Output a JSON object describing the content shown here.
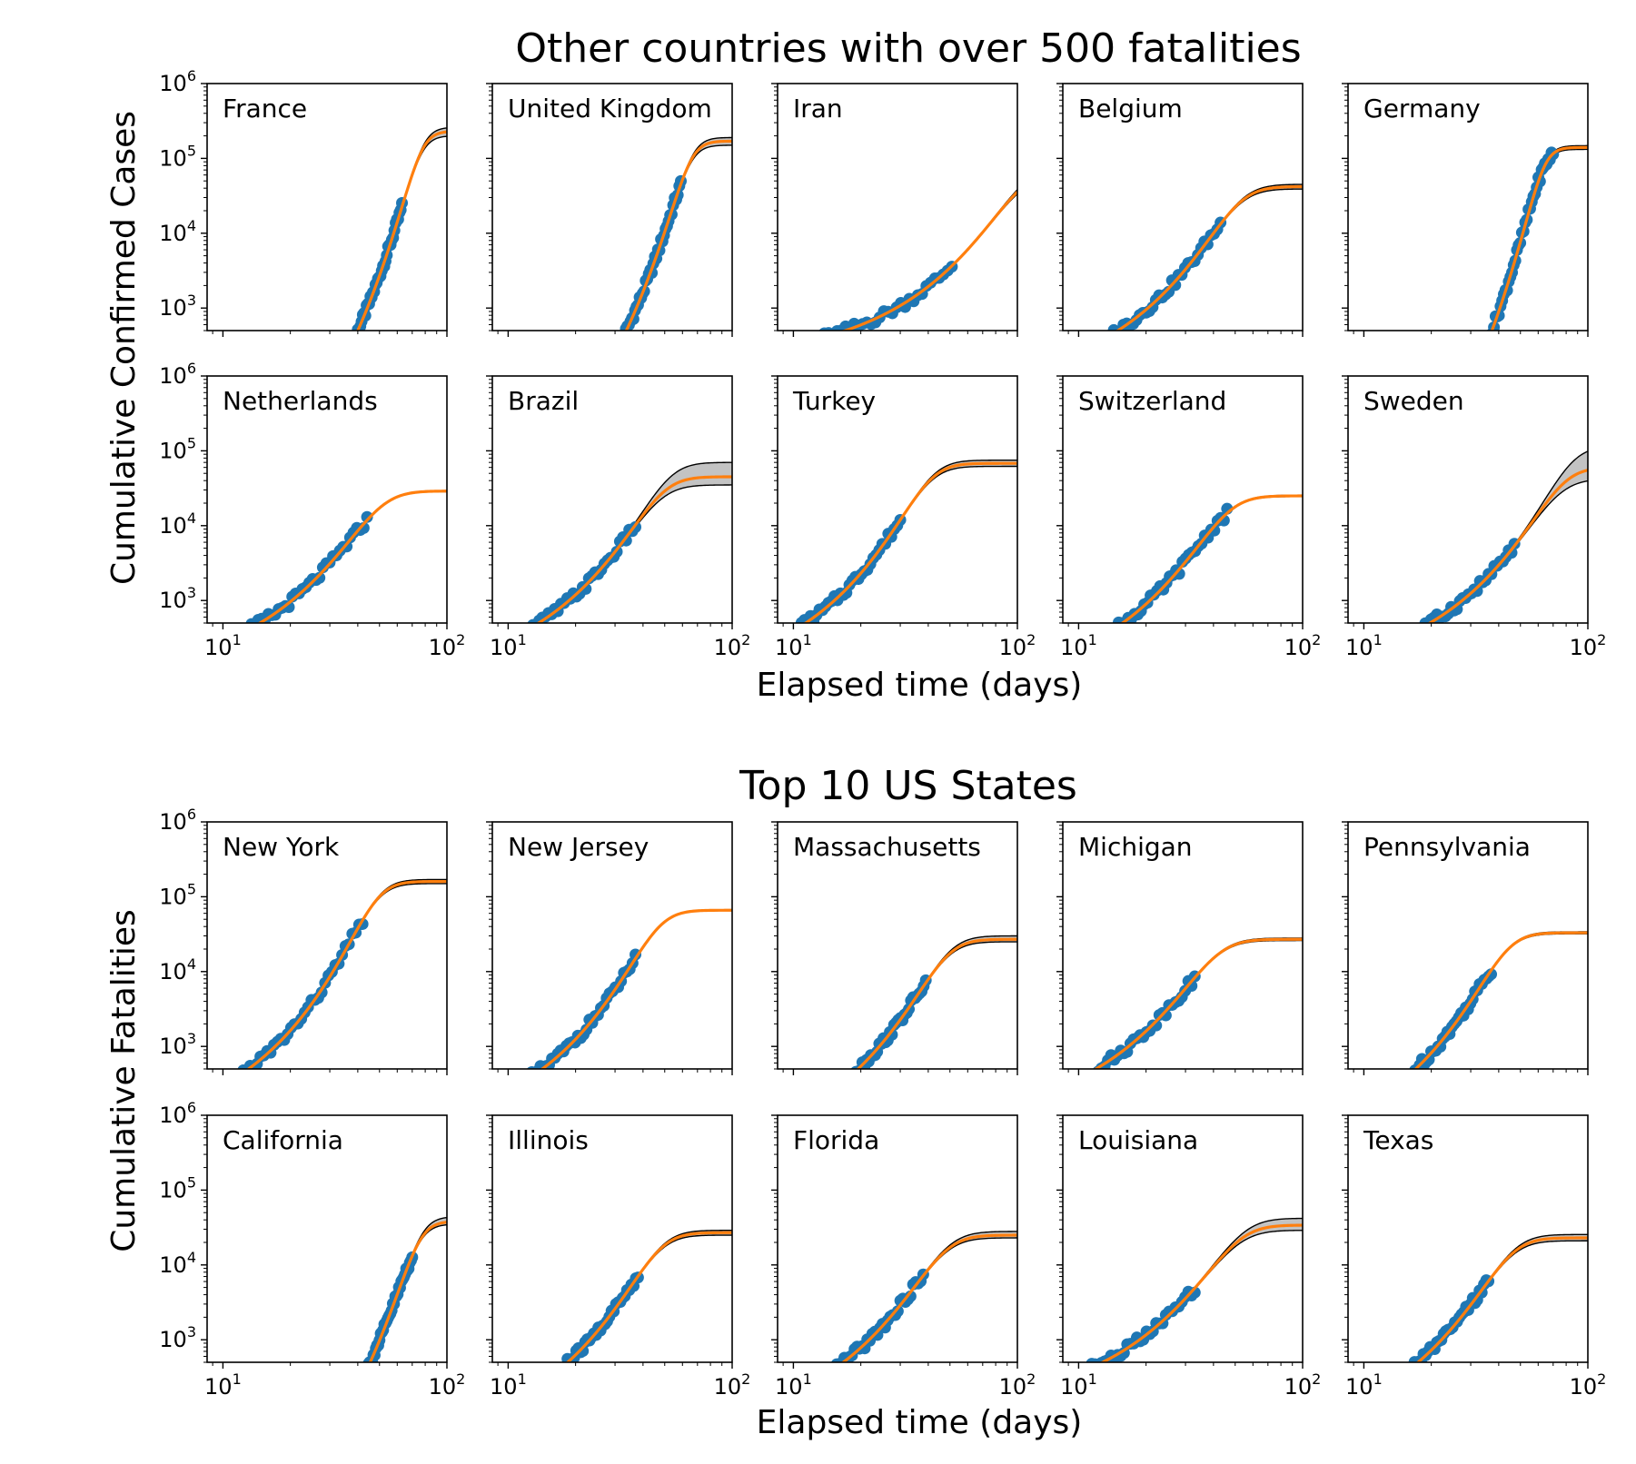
{
  "figure": {
    "sections": [
      {
        "title": "Other countries with over 500 fatalities",
        "ylabel": "Cumulative Confirmed Cases",
        "xlabel": "Elapsed time (days)"
      },
      {
        "title": "Top 10 US States",
        "ylabel": "Cumulative Fatalities",
        "xlabel": "Elapsed time (days)"
      }
    ],
    "colors": {
      "data": "#1f77b4",
      "fit": "#ff7f0e",
      "band": "#b8b8b8",
      "band_edge": "#000000"
    }
  },
  "chart_data": [
    {
      "type": "scatter",
      "panel": "France",
      "section": 0,
      "xscale": "log",
      "yscale": "log",
      "xlim": [
        8.5,
        100
      ],
      "ylim": [
        500,
        1000000
      ],
      "xticks": [
        "10^1",
        "10^2"
      ],
      "yticks": [
        "10^3",
        "10^4",
        "10^5",
        "10^6"
      ],
      "t0": 37,
      "t1": 63,
      "ymax": 230000,
      "k": 0.17,
      "band": [
        200000,
        260000
      ],
      "tail": 0.12
    },
    {
      "type": "scatter",
      "panel": "United Kingdom",
      "section": 0,
      "xscale": "log",
      "yscale": "log",
      "xlim": [
        8.5,
        100
      ],
      "ylim": [
        500,
        1000000
      ],
      "xticks": [
        "10^1",
        "10^2"
      ],
      "yticks": [
        "10^3",
        "10^4",
        "10^5",
        "10^6"
      ],
      "t0": 31,
      "t1": 59,
      "ymax": 170000,
      "k": 0.19,
      "band": [
        150000,
        190000
      ],
      "tail": 0.1
    },
    {
      "type": "scatter",
      "panel": "Iran",
      "section": 0,
      "xscale": "log",
      "yscale": "log",
      "xlim": [
        8.5,
        100
      ],
      "ylim": [
        500,
        1000000
      ],
      "xticks": [
        "10^1",
        "10^2"
      ],
      "yticks": [
        "10^3",
        "10^4",
        "10^5",
        "10^6"
      ],
      "t0": 8.5,
      "t1": 51,
      "ymax": 70000,
      "k": 0.06,
      "band": [
        62000,
        80000
      ],
      "tail": 0.15
    },
    {
      "type": "scatter",
      "panel": "Belgium",
      "section": 0,
      "xscale": "log",
      "yscale": "log",
      "xlim": [
        8.5,
        100
      ],
      "ylim": [
        500,
        1000000
      ],
      "xticks": [
        "10^1",
        "10^2"
      ],
      "yticks": [
        "10^3",
        "10^4",
        "10^5",
        "10^6"
      ],
      "t0": 11,
      "t1": 43,
      "ymax": 42000,
      "k": 0.13,
      "band": [
        39000,
        45000
      ],
      "tail": 0.15
    },
    {
      "type": "scatter",
      "panel": "Germany",
      "section": 0,
      "xscale": "log",
      "yscale": "log",
      "xlim": [
        8.5,
        100
      ],
      "ylim": [
        500,
        1000000
      ],
      "xticks": [
        "10^1",
        "10^2"
      ],
      "yticks": [
        "10^3",
        "10^4",
        "10^5",
        "10^6"
      ],
      "t0": 35,
      "t1": 70,
      "ymax": 140000,
      "k": 0.22,
      "band": [
        132000,
        148000
      ],
      "tail": 0.2
    },
    {
      "type": "scatter",
      "panel": "Netherlands",
      "section": 0,
      "xscale": "log",
      "yscale": "log",
      "xlim": [
        8.5,
        100
      ],
      "ylim": [
        500,
        1000000
      ],
      "xticks": [
        "10^1",
        "10^2"
      ],
      "yticks": [
        "10^3",
        "10^4",
        "10^5",
        "10^6"
      ],
      "t0": 10.5,
      "t1": 44,
      "ymax": 29000,
      "k": 0.125,
      "band": [
        28500,
        29500
      ],
      "tail": 0.2
    },
    {
      "type": "scatter",
      "panel": "Brazil",
      "section": 0,
      "xscale": "log",
      "yscale": "log",
      "xlim": [
        8.5,
        100
      ],
      "ylim": [
        500,
        1000000
      ],
      "xticks": [
        "10^1",
        "10^2"
      ],
      "yticks": [
        "10^3",
        "10^4",
        "10^5",
        "10^6"
      ],
      "t0": 10,
      "t1": 37,
      "ymax": 45000,
      "k": 0.14,
      "band": [
        35000,
        70000
      ],
      "tail": 0.06
    },
    {
      "type": "scatter",
      "panel": "Turkey",
      "section": 0,
      "xscale": "log",
      "yscale": "log",
      "xlim": [
        8.5,
        100
      ],
      "ylim": [
        500,
        1000000
      ],
      "xticks": [
        "10^1",
        "10^2"
      ],
      "yticks": [
        "10^3",
        "10^4",
        "10^5",
        "10^6"
      ],
      "t0": 8.5,
      "t1": 30,
      "ymax": 68000,
      "k": 0.18,
      "band": [
        62000,
        75000
      ],
      "tail": 0.2
    },
    {
      "type": "scatter",
      "panel": "Switzerland",
      "section": 0,
      "xscale": "log",
      "yscale": "log",
      "xlim": [
        8.5,
        100
      ],
      "ylim": [
        500,
        1000000
      ],
      "xticks": [
        "10^1",
        "10^2"
      ],
      "yticks": [
        "10^3",
        "10^4",
        "10^5",
        "10^6"
      ],
      "t0": 12,
      "t1": 46,
      "ymax": 25000,
      "k": 0.14,
      "band": [
        24500,
        25500
      ],
      "tail": 0.2
    },
    {
      "type": "scatter",
      "panel": "Sweden",
      "section": 0,
      "xscale": "log",
      "yscale": "log",
      "xlim": [
        8.5,
        100
      ],
      "ylim": [
        500,
        1000000
      ],
      "xticks": [
        "10^1",
        "10^2"
      ],
      "yticks": [
        "10^3",
        "10^4",
        "10^5",
        "10^6"
      ],
      "t0": 14,
      "t1": 47,
      "ymax": 60000,
      "k": 0.09,
      "band": [
        42000,
        115000
      ],
      "tail": 0.06
    },
    {
      "type": "scatter",
      "panel": "New York",
      "section": 1,
      "xscale": "log",
      "yscale": "log",
      "xlim": [
        8.5,
        100
      ],
      "ylim": [
        500,
        1000000
      ],
      "xticks": [
        "10^1",
        "10^2"
      ],
      "yticks": [
        "10^3",
        "10^4",
        "10^5",
        "10^6"
      ],
      "t0": 10,
      "t1": 42,
      "ymax": 160000,
      "k": 0.17,
      "band": [
        150000,
        170000
      ],
      "tail": 0.15
    },
    {
      "type": "scatter",
      "panel": "New Jersey",
      "section": 1,
      "xscale": "log",
      "yscale": "log",
      "xlim": [
        8.5,
        100
      ],
      "ylim": [
        500,
        1000000
      ],
      "xticks": [
        "10^1",
        "10^2"
      ],
      "yticks": [
        "10^3",
        "10^4",
        "10^5",
        "10^6"
      ],
      "t0": 11,
      "t1": 37,
      "ymax": 66000,
      "k": 0.16,
      "band": [
        65000,
        67000
      ],
      "tail": 0.2
    },
    {
      "type": "scatter",
      "panel": "Massachusetts",
      "section": 1,
      "xscale": "log",
      "yscale": "log",
      "xlim": [
        8.5,
        100
      ],
      "ylim": [
        500,
        1000000
      ],
      "xticks": [
        "10^1",
        "10^2"
      ],
      "yticks": [
        "10^3",
        "10^4",
        "10^5",
        "10^6"
      ],
      "t0": 16,
      "t1": 39,
      "ymax": 27000,
      "k": 0.15,
      "band": [
        25000,
        30000
      ],
      "tail": 0.2
    },
    {
      "type": "scatter",
      "panel": "Michigan",
      "section": 1,
      "xscale": "log",
      "yscale": "log",
      "xlim": [
        8.5,
        100
      ],
      "ylim": [
        500,
        1000000
      ],
      "xticks": [
        "10^1",
        "10^2"
      ],
      "yticks": [
        "10^3",
        "10^4",
        "10^5",
        "10^6"
      ],
      "t0": 8.5,
      "t1": 33,
      "ymax": 27000,
      "k": 0.15,
      "band": [
        26000,
        28000
      ],
      "tail": 0.2
    },
    {
      "type": "scatter",
      "panel": "Pennsylvania",
      "section": 1,
      "xscale": "log",
      "yscale": "log",
      "xlim": [
        8.5,
        100
      ],
      "ylim": [
        500,
        1000000
      ],
      "xticks": [
        "10^1",
        "10^2"
      ],
      "yticks": [
        "10^3",
        "10^4",
        "10^5",
        "10^6"
      ],
      "t0": 14,
      "t1": 37,
      "ymax": 33000,
      "k": 0.17,
      "band": [
        32000,
        34000
      ],
      "tail": 0.2
    },
    {
      "type": "scatter",
      "panel": "California",
      "section": 1,
      "xscale": "log",
      "yscale": "log",
      "xlim": [
        8.5,
        100
      ],
      "ylim": [
        500,
        1000000
      ],
      "xticks": [
        "10^1",
        "10^2"
      ],
      "yticks": [
        "10^3",
        "10^4",
        "10^5",
        "10^6"
      ],
      "t0": 42,
      "t1": 70,
      "ymax": 38000,
      "k": 0.15,
      "band": [
        35000,
        44000
      ],
      "tail": 0.1
    },
    {
      "type": "scatter",
      "panel": "Illinois",
      "section": 1,
      "xscale": "log",
      "yscale": "log",
      "xlim": [
        8.5,
        100
      ],
      "ylim": [
        500,
        1000000
      ],
      "xticks": [
        "10^1",
        "10^2"
      ],
      "yticks": [
        "10^3",
        "10^4",
        "10^5",
        "10^6"
      ],
      "t0": 15,
      "t1": 38,
      "ymax": 27000,
      "k": 0.15,
      "band": [
        25000,
        29000
      ],
      "tail": 0.2
    },
    {
      "type": "scatter",
      "panel": "Florida",
      "section": 1,
      "xscale": "log",
      "yscale": "log",
      "xlim": [
        8.5,
        100
      ],
      "ylim": [
        500,
        1000000
      ],
      "xticks": [
        "10^1",
        "10^2"
      ],
      "yticks": [
        "10^3",
        "10^4",
        "10^5",
        "10^6"
      ],
      "t0": 13,
      "t1": 38,
      "ymax": 25000,
      "k": 0.14,
      "band": [
        23000,
        28000
      ],
      "tail": 0.2
    },
    {
      "type": "scatter",
      "panel": "Louisiana",
      "section": 1,
      "xscale": "log",
      "yscale": "log",
      "xlim": [
        8.5,
        100
      ],
      "ylim": [
        500,
        1000000
      ],
      "xticks": [
        "10^1",
        "10^2"
      ],
      "yticks": [
        "10^3",
        "10^4",
        "10^5",
        "10^6"
      ],
      "t0": 8.5,
      "t1": 33,
      "ymax": 34000,
      "k": 0.12,
      "band": [
        29000,
        42000
      ],
      "tail": 0.08
    },
    {
      "type": "scatter",
      "panel": "Texas",
      "section": 1,
      "xscale": "log",
      "yscale": "log",
      "xlim": [
        8.5,
        100
      ],
      "ylim": [
        500,
        1000000
      ],
      "xticks": [
        "10^1",
        "10^2"
      ],
      "yticks": [
        "10^3",
        "10^4",
        "10^5",
        "10^6"
      ],
      "t0": 14,
      "t1": 36,
      "ymax": 23000,
      "k": 0.15,
      "band": [
        21000,
        25500
      ],
      "tail": 0.2
    }
  ]
}
